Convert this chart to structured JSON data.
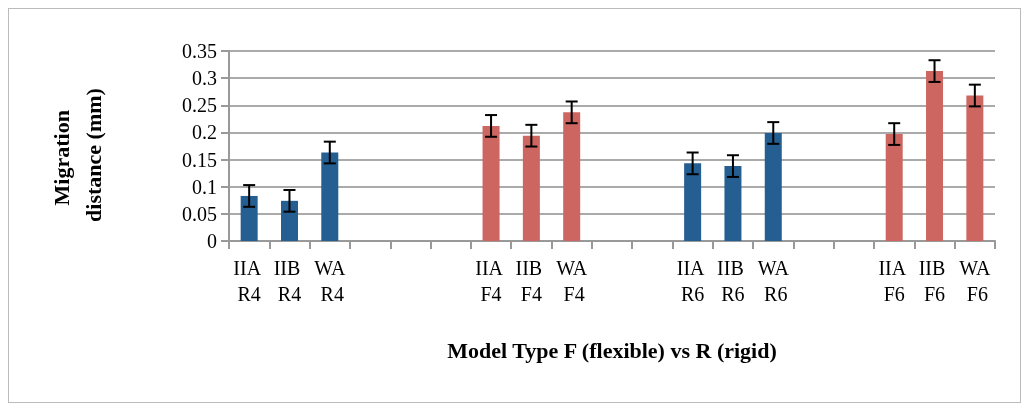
{
  "chart_data": {
    "type": "bar",
    "xlabel": "Model Type F (flexible) vs R (rigid)",
    "ylabel": "Migration distance (mm)",
    "categories": [
      "IIA R4",
      "IIB R4",
      "WA R4",
      null,
      null,
      null,
      "IIA F4",
      "IIB F4",
      "WA F4",
      null,
      null,
      "IIA R6",
      "IIB R6",
      "WA R6",
      null,
      null,
      "IIA F6",
      "IIB F6",
      "WA F6"
    ],
    "values": [
      0.083,
      0.074,
      0.163,
      null,
      null,
      null,
      0.212,
      0.194,
      0.237,
      null,
      null,
      0.143,
      0.138,
      0.199,
      null,
      null,
      0.197,
      0.313,
      0.268
    ],
    "errors": [
      0.02,
      0.02,
      0.02,
      null,
      null,
      null,
      0.02,
      0.02,
      0.02,
      null,
      null,
      0.02,
      0.02,
      0.02,
      null,
      null,
      0.02,
      0.02,
      0.02
    ],
    "colors": [
      "#255e91",
      "#255e91",
      "#255e91",
      null,
      null,
      null,
      "#cd6661",
      "#cd6661",
      "#cd6661",
      null,
      null,
      "#255e91",
      "#255e91",
      "#255e91",
      null,
      null,
      "#cd6661",
      "#cd6661",
      "#cd6661"
    ],
    "ylim": [
      0,
      0.35
    ],
    "yticks": [
      0,
      0.05,
      0.1,
      0.15,
      0.2,
      0.25,
      0.3,
      0.35
    ],
    "grid": "y"
  }
}
